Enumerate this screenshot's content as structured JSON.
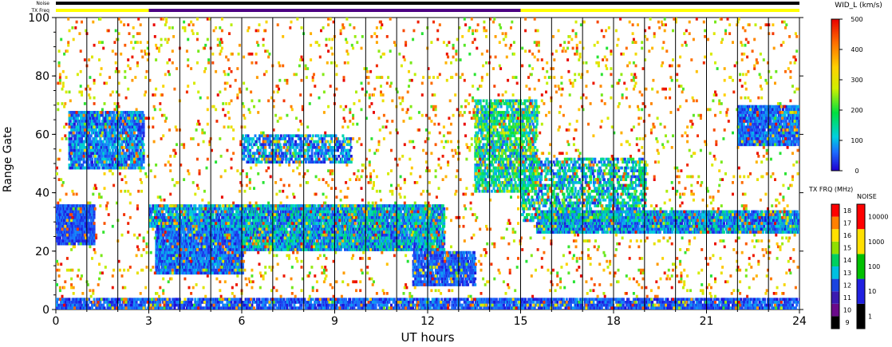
{
  "chart_data": {
    "type": "heatmap",
    "title": "",
    "xlabel": "UT hours",
    "ylabel": "Range Gate",
    "xlim": [
      0,
      24
    ],
    "ylim": [
      0,
      100
    ],
    "x_ticks": [
      "0",
      "3",
      "6",
      "9",
      "12",
      "15",
      "18",
      "21",
      "24"
    ],
    "y_ticks": [
      "0",
      "20",
      "40",
      "60",
      "80",
      "100"
    ],
    "grid_verticals_hours": [
      1,
      2,
      3,
      4,
      5,
      6,
      7,
      8,
      9,
      10,
      11,
      12,
      13,
      14,
      15,
      16,
      17,
      18,
      19,
      20,
      21,
      22,
      23
    ],
    "top_bars": {
      "noise_label": "Noise",
      "txfreq_label": "TX Freq",
      "txfreq_segments": [
        {
          "start": 0,
          "end": 3,
          "color": "#ffff00"
        },
        {
          "start": 3,
          "end": 15,
          "color": "#4b0082"
        },
        {
          "start": 15,
          "end": 24,
          "color": "#ffff00"
        }
      ]
    },
    "colorbars": {
      "width": {
        "label": "WID_L (km/s)",
        "ticks": [
          "0",
          "100",
          "200",
          "300",
          "400",
          "500"
        ]
      },
      "txfreq": {
        "label": "TX FRQ (MHz)",
        "ticks": [
          "9",
          "10",
          "11",
          "12",
          "13",
          "14",
          "15",
          "16",
          "17",
          "18"
        ],
        "colors": [
          "#000000",
          "#6a0a8a",
          "#3a1ab0",
          "#1a44e0",
          "#00c0e0",
          "#00d060",
          "#90e000",
          "#ffe000",
          "#ff8000",
          "#ff0000"
        ]
      },
      "noise": {
        "label": "NOISE",
        "ticks": [
          "1",
          "10",
          "100",
          "1000",
          "10000"
        ],
        "colors": [
          "#000000",
          "#2020e0",
          "#00c000",
          "#ffe000",
          "#ff0000"
        ]
      }
    },
    "scatter_regions": [
      {
        "name": "near-ground band",
        "x": [
          0,
          24
        ],
        "y": [
          0,
          4
        ],
        "density": 0.7,
        "width": [
          5,
          90
        ]
      },
      {
        "name": "early patch",
        "x": [
          0,
          1.2
        ],
        "y": [
          22,
          36
        ],
        "density": 0.9,
        "width": [
          10,
          80
        ]
      },
      {
        "name": "early high patch",
        "x": [
          0.4,
          2.8
        ],
        "y": [
          48,
          68
        ],
        "density": 0.75,
        "width": [
          10,
          130
        ]
      },
      {
        "name": "main blob",
        "x": [
          3.2,
          6.0
        ],
        "y": [
          12,
          30
        ],
        "density": 0.9,
        "width": [
          10,
          110
        ]
      },
      {
        "name": "blob upper",
        "x": [
          3.0,
          6.0
        ],
        "y": [
          28,
          36
        ],
        "density": 0.75,
        "width": [
          10,
          160
        ]
      },
      {
        "name": "mid band",
        "x": [
          6.0,
          12.5
        ],
        "y": [
          20,
          36
        ],
        "density": 0.85,
        "width": [
          10,
          180
        ]
      },
      {
        "name": "mid upper cloud",
        "x": [
          6.0,
          9.5
        ],
        "y": [
          50,
          60
        ],
        "density": 0.5,
        "width": [
          10,
          140
        ]
      },
      {
        "name": "tail",
        "x": [
          11.5,
          13.5
        ],
        "y": [
          8,
          20
        ],
        "density": 0.7,
        "width": [
          10,
          90
        ]
      },
      {
        "name": "slant echoes",
        "x": [
          13.5,
          15.5
        ],
        "y": [
          40,
          72
        ],
        "density": 0.6,
        "width": [
          40,
          260
        ]
      },
      {
        "name": "late band",
        "x": [
          15.5,
          24
        ],
        "y": [
          26,
          34
        ],
        "density": 0.8,
        "width": [
          10,
          160
        ]
      },
      {
        "name": "late slant",
        "x": [
          15.0,
          19.0
        ],
        "y": [
          30,
          52
        ],
        "density": 0.45,
        "width": [
          20,
          220
        ]
      },
      {
        "name": "late high patch",
        "x": [
          22.0,
          24
        ],
        "y": [
          56,
          70
        ],
        "density": 0.85,
        "width": [
          10,
          110
        ]
      },
      {
        "name": "sparse noise",
        "x": [
          0,
          24
        ],
        "y": [
          0,
          100
        ],
        "density": 0.04,
        "width": [
          200,
          500
        ]
      }
    ]
  }
}
